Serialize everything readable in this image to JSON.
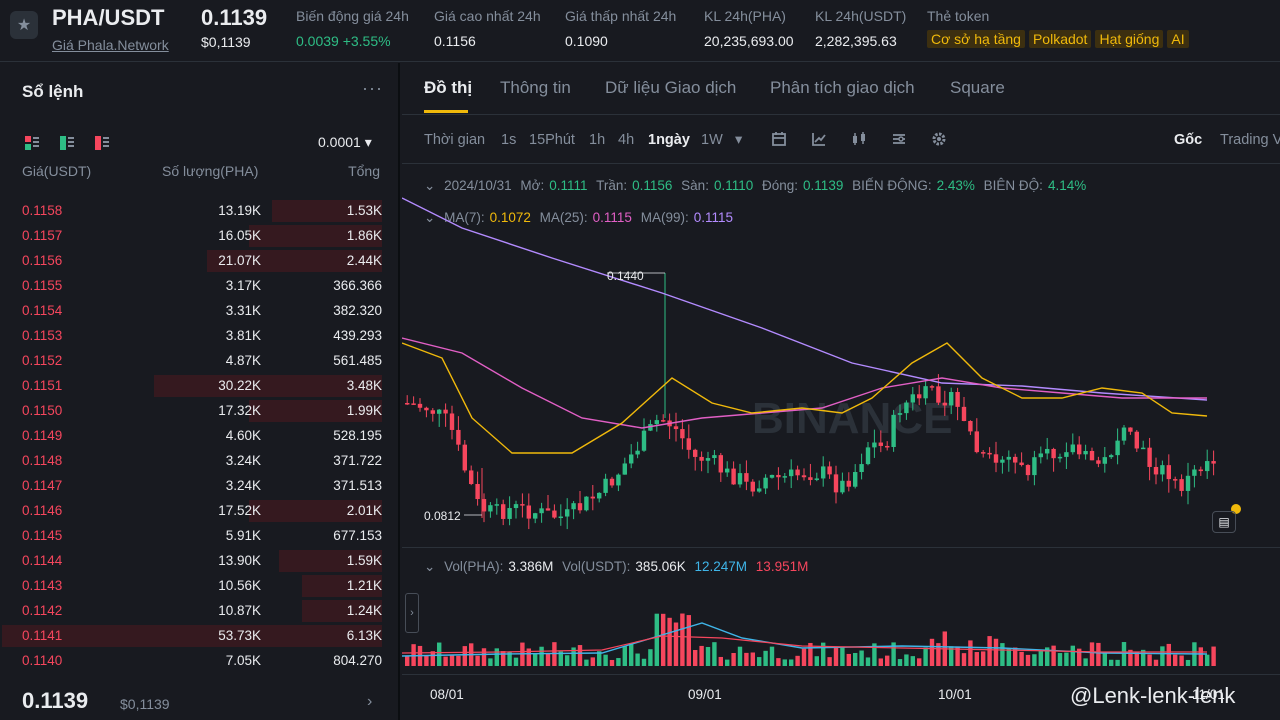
{
  "header": {
    "star_icon": "star-icon",
    "symbol": "PHA/USDT",
    "symbol_link": "Giá Phala.Network",
    "last_price": "0.1139",
    "last_price_usd": "$0,1139",
    "stats": [
      {
        "label": "Biến động giá 24h",
        "value": "0.0039 +3.55%",
        "color": "green"
      },
      {
        "label": "Giá cao nhất 24h",
        "value": "0.1156"
      },
      {
        "label": "Giá thấp nhất 24h",
        "value": "0.1090"
      },
      {
        "label": "KL 24h(PHA)",
        "value": "20,235,693.00"
      },
      {
        "label": "KL 24h(USDT)",
        "value": "2,282,395.63"
      }
    ],
    "tags_label": "Thẻ token",
    "tags": [
      "Cơ sở hạ tầng",
      "Polkadot",
      "Hạt giống",
      "AI"
    ]
  },
  "orderbook": {
    "title": "Sổ lệnh",
    "more": "···",
    "precision": "0.0001 ▾",
    "col_price": "Giá(USDT)",
    "col_qty": "Số lượng(PHA)",
    "col_total": "Tổng",
    "rows": [
      {
        "price": "0.1158",
        "qty": "13.19K",
        "total": "1.53K",
        "depth": 0.29
      },
      {
        "price": "0.1157",
        "qty": "16.05K",
        "total": "1.86K",
        "depth": 0.35
      },
      {
        "price": "0.1156",
        "qty": "21.07K",
        "total": "2.44K",
        "depth": 0.46
      },
      {
        "price": "0.1155",
        "qty": "3.17K",
        "total": "366.366",
        "depth": 0.0
      },
      {
        "price": "0.1154",
        "qty": "3.31K",
        "total": "382.320",
        "depth": 0.0
      },
      {
        "price": "0.1153",
        "qty": "3.81K",
        "total": "439.293",
        "depth": 0.0
      },
      {
        "price": "0.1152",
        "qty": "4.87K",
        "total": "561.485",
        "depth": 0.0
      },
      {
        "price": "0.1151",
        "qty": "30.22K",
        "total": "3.48K",
        "depth": 0.6
      },
      {
        "price": "0.1150",
        "qty": "17.32K",
        "total": "1.99K",
        "depth": 0.35
      },
      {
        "price": "0.1149",
        "qty": "4.60K",
        "total": "528.195",
        "depth": 0.0
      },
      {
        "price": "0.1148",
        "qty": "3.24K",
        "total": "371.722",
        "depth": 0.0
      },
      {
        "price": "0.1147",
        "qty": "3.24K",
        "total": "371.513",
        "depth": 0.0
      },
      {
        "price": "0.1146",
        "qty": "17.52K",
        "total": "2.01K",
        "depth": 0.35
      },
      {
        "price": "0.1145",
        "qty": "5.91K",
        "total": "677.153",
        "depth": 0.0
      },
      {
        "price": "0.1144",
        "qty": "13.90K",
        "total": "1.59K",
        "depth": 0.27
      },
      {
        "price": "0.1143",
        "qty": "10.56K",
        "total": "1.21K",
        "depth": 0.21
      },
      {
        "price": "0.1142",
        "qty": "10.87K",
        "total": "1.24K",
        "depth": 0.21
      },
      {
        "price": "0.1141",
        "qty": "53.73K",
        "total": "6.13K",
        "depth": 1.0
      },
      {
        "price": "0.1140",
        "qty": "7.05K",
        "total": "804.270",
        "depth": 0.0
      }
    ],
    "last_price": "0.1139",
    "last_price_usd": "$0,1139",
    "more_arrow": "›"
  },
  "chart": {
    "tabs": [
      "Đồ thị",
      "Thông tin",
      "Dữ liệu Giao dịch",
      "Phân tích giao dịch",
      "Square"
    ],
    "toolbar": {
      "time_label": "Thời gian",
      "intervals": [
        "1s",
        "15Phút",
        "1h",
        "4h",
        "1ngày",
        "1W"
      ],
      "active_interval": "1ngày",
      "dropdown": "▾",
      "right": [
        "Gốc",
        "Trading View"
      ]
    },
    "ohlc": {
      "date": "2024/10/31",
      "open_label": "Mở:",
      "open": "0.1111",
      "high_label": "Trần:",
      "high": "0.1156",
      "low_label": "Sàn:",
      "low": "0.1110",
      "close_label": "Đóng:",
      "close": "0.1139",
      "change_label": "BIẾN ĐỘNG:",
      "change": "2.43%",
      "amp_label": "BIÊN ĐỘ:",
      "amp": "4.14%"
    },
    "ma": {
      "ma7_label": "MA(7):",
      "ma7": "0.1072",
      "ma25_label": "MA(25):",
      "ma25": "0.1115",
      "ma99_label": "MA(99):",
      "ma99": "0.1115"
    },
    "vol": {
      "vol_pha_label": "Vol(PHA):",
      "vol_pha": "3.386M",
      "vol_usdt_label": "Vol(USDT):",
      "vol_usdt": "385.06K",
      "ma1": "12.247M",
      "ma2": "13.951M"
    },
    "high_marker": "0.1440",
    "low_marker": "0.0812",
    "x_labels": [
      "08/01",
      "09/01",
      "10/01",
      "11/01"
    ],
    "watermark": "BINANCE",
    "user_mark": "@Lenk-lenk-lenk",
    "colors": {
      "up": "#2ebd85",
      "down": "#f6465d",
      "accent": "#f0b90b"
    }
  }
}
